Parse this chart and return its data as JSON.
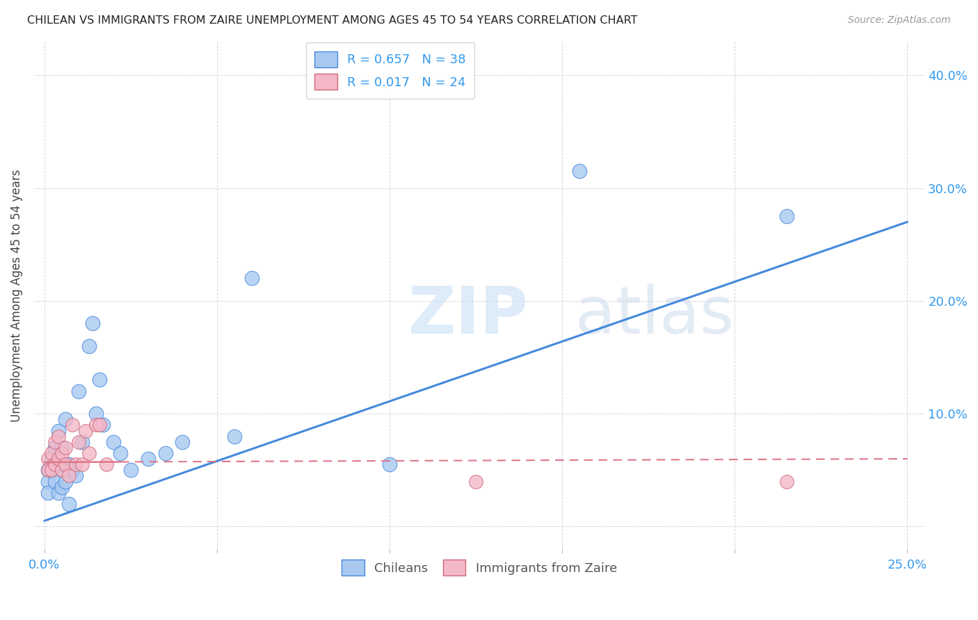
{
  "title": "CHILEAN VS IMMIGRANTS FROM ZAIRE UNEMPLOYMENT AMONG AGES 45 TO 54 YEARS CORRELATION CHART",
  "source": "Source: ZipAtlas.com",
  "ylabel": "Unemployment Among Ages 45 to 54 years",
  "xlabel_chileans": "Chileans",
  "xlabel_immigrants": "Immigrants from Zaire",
  "xlim": [
    -0.003,
    0.255
  ],
  "ylim": [
    -0.02,
    0.43
  ],
  "xticks": [
    0.0,
    0.05,
    0.1,
    0.15,
    0.2,
    0.25
  ],
  "yticks": [
    0.0,
    0.1,
    0.2,
    0.3,
    0.4
  ],
  "R_chilean": 0.657,
  "N_chilean": 38,
  "R_immigrant": 0.017,
  "N_immigrant": 24,
  "color_chilean": "#a8c8f0",
  "color_immigrant": "#f4b8c8",
  "line_color_chilean": "#4488dd",
  "line_color_immigrant": "#dd7788",
  "chilean_x": [
    0.001,
    0.001,
    0.001,
    0.002,
    0.002,
    0.003,
    0.003,
    0.003,
    0.004,
    0.004,
    0.004,
    0.005,
    0.005,
    0.005,
    0.006,
    0.006,
    0.007,
    0.007,
    0.008,
    0.009,
    0.01,
    0.011,
    0.013,
    0.014,
    0.015,
    0.016,
    0.017,
    0.02,
    0.022,
    0.025,
    0.03,
    0.035,
    0.04,
    0.055,
    0.06,
    0.1,
    0.155,
    0.215
  ],
  "chilean_y": [
    0.05,
    0.04,
    0.03,
    0.06,
    0.05,
    0.07,
    0.05,
    0.04,
    0.085,
    0.055,
    0.03,
    0.07,
    0.055,
    0.035,
    0.095,
    0.04,
    0.055,
    0.02,
    0.05,
    0.045,
    0.12,
    0.075,
    0.16,
    0.18,
    0.1,
    0.13,
    0.09,
    0.075,
    0.065,
    0.05,
    0.06,
    0.065,
    0.075,
    0.08,
    0.22,
    0.055,
    0.315,
    0.275
  ],
  "immigrant_x": [
    0.001,
    0.001,
    0.002,
    0.002,
    0.003,
    0.003,
    0.004,
    0.004,
    0.005,
    0.005,
    0.006,
    0.006,
    0.007,
    0.008,
    0.009,
    0.01,
    0.011,
    0.012,
    0.013,
    0.015,
    0.016,
    0.018,
    0.125,
    0.215
  ],
  "immigrant_y": [
    0.06,
    0.05,
    0.065,
    0.05,
    0.075,
    0.055,
    0.08,
    0.06,
    0.065,
    0.05,
    0.07,
    0.055,
    0.045,
    0.09,
    0.055,
    0.075,
    0.055,
    0.085,
    0.065,
    0.09,
    0.09,
    0.055,
    0.04,
    0.04
  ],
  "blue_line_x0": 0.0,
  "blue_line_y0": 0.005,
  "blue_line_x1": 0.25,
  "blue_line_y1": 0.27,
  "pink_line_x0": 0.0,
  "pink_line_y0": 0.057,
  "pink_line_x1": 0.25,
  "pink_line_y1": 0.06
}
